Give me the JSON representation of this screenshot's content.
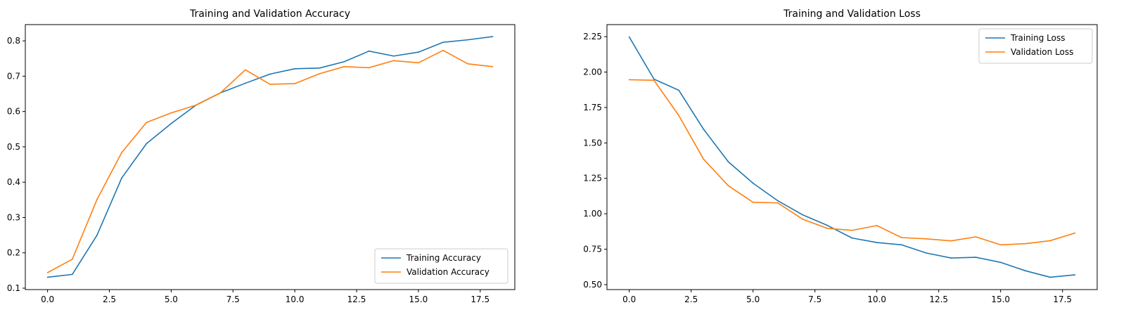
{
  "colors": {
    "series_1": "#1f77b4",
    "series_2": "#ff7f0e",
    "axis": "#000000",
    "legend_border": "#cccccc"
  },
  "chart_data": [
    {
      "type": "line",
      "title": "Training and Validation Accuracy",
      "xlabel": "",
      "ylabel": "",
      "xlim": [
        -0.9,
        18.9
      ],
      "ylim": [
        0.096,
        0.846
      ],
      "xticks": [
        0.0,
        2.5,
        5.0,
        7.5,
        10.0,
        12.5,
        15.0,
        17.5
      ],
      "xtick_labels": [
        "0.0",
        "2.5",
        "5.0",
        "7.5",
        "10.0",
        "12.5",
        "15.0",
        "17.5"
      ],
      "yticks": [
        0.1,
        0.2,
        0.3,
        0.4,
        0.5,
        0.6,
        0.7,
        0.8
      ],
      "ytick_labels": [
        "0.1",
        "0.2",
        "0.3",
        "0.4",
        "0.5",
        "0.6",
        "0.7",
        "0.8"
      ],
      "grid": false,
      "legend": "lower right",
      "x": [
        0,
        1,
        2,
        3,
        4,
        5,
        6,
        7,
        8,
        9,
        10,
        11,
        12,
        13,
        14,
        15,
        16,
        17,
        18
      ],
      "series": [
        {
          "name": "Training Accuracy",
          "color": "#1f77b4",
          "values": [
            0.131,
            0.139,
            0.25,
            0.412,
            0.509,
            0.566,
            0.618,
            0.653,
            0.68,
            0.706,
            0.721,
            0.723,
            0.741,
            0.771,
            0.757,
            0.768,
            0.796,
            0.803,
            0.812
          ]
        },
        {
          "name": "Validation Accuracy",
          "color": "#ff7f0e",
          "values": [
            0.144,
            0.182,
            0.351,
            0.484,
            0.569,
            0.596,
            0.618,
            0.653,
            0.718,
            0.677,
            0.679,
            0.707,
            0.727,
            0.724,
            0.744,
            0.738,
            0.773,
            0.735,
            0.727
          ]
        }
      ]
    },
    {
      "type": "line",
      "title": "Training and Validation Loss",
      "xlabel": "",
      "ylabel": "",
      "xlim": [
        -0.9,
        18.9
      ],
      "ylim": [
        0.465,
        2.335
      ],
      "xticks": [
        0.0,
        2.5,
        5.0,
        7.5,
        10.0,
        12.5,
        15.0,
        17.5
      ],
      "xtick_labels": [
        "0.0",
        "2.5",
        "5.0",
        "7.5",
        "10.0",
        "12.5",
        "15.0",
        "17.5"
      ],
      "yticks": [
        0.5,
        0.75,
        1.0,
        1.25,
        1.5,
        1.75,
        2.0,
        2.25
      ],
      "ytick_labels": [
        "0.50",
        "0.75",
        "1.00",
        "1.25",
        "1.50",
        "1.75",
        "2.00",
        "2.25"
      ],
      "grid": false,
      "legend": "upper right",
      "x": [
        0,
        1,
        2,
        3,
        4,
        5,
        6,
        7,
        8,
        9,
        10,
        11,
        12,
        13,
        14,
        15,
        16,
        17,
        18
      ],
      "series": [
        {
          "name": "Training Loss",
          "color": "#1f77b4",
          "values": [
            2.248,
            1.95,
            1.872,
            1.597,
            1.367,
            1.216,
            1.092,
            0.993,
            0.918,
            0.829,
            0.797,
            0.781,
            0.723,
            0.688,
            0.693,
            0.657,
            0.598,
            0.552,
            0.569
          ]
        },
        {
          "name": "Validation Loss",
          "color": "#ff7f0e",
          "values": [
            1.946,
            1.942,
            1.694,
            1.386,
            1.198,
            1.081,
            1.077,
            0.962,
            0.897,
            0.883,
            0.917,
            0.832,
            0.823,
            0.809,
            0.837,
            0.781,
            0.789,
            0.81,
            0.864
          ]
        }
      ]
    }
  ]
}
